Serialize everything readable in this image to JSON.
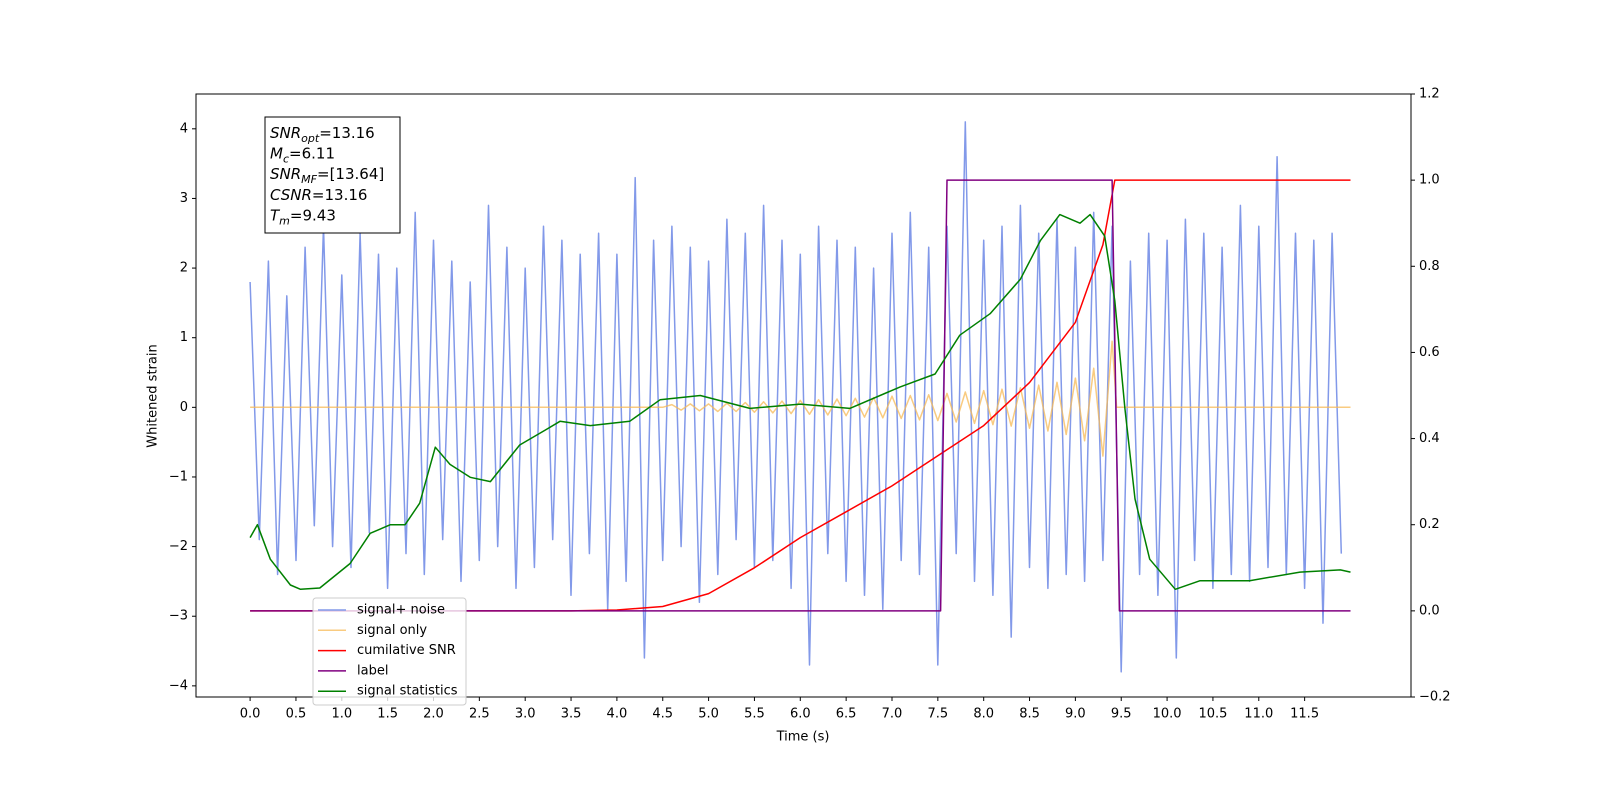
{
  "chart_data": {
    "type": "line",
    "xlabel": "Time (s)",
    "ylabel": "Whitened strain",
    "xlim": [
      -0.59,
      12.66
    ],
    "ylim": [
      -4.16,
      4.5
    ],
    "y2lim": [
      -0.2,
      1.2
    ],
    "xticks": [
      {
        "value": 0,
        "label": "0.0"
      },
      0.5,
      {
        "value": 1,
        "label": "1.0"
      },
      1.5,
      {
        "value": 2,
        "label": "2.0"
      },
      2.5,
      {
        "value": 3,
        "label": "3.0"
      },
      3.5,
      {
        "value": 4,
        "label": "4.0"
      },
      4.5,
      {
        "value": 5,
        "label": "5.0"
      },
      5.5,
      {
        "value": 6,
        "label": "6.0"
      },
      6.5,
      {
        "value": 7,
        "label": "7.0"
      },
      7.5,
      {
        "value": 8,
        "label": "8.0"
      },
      8.5,
      {
        "value": 9,
        "label": "9.0"
      },
      9.5,
      {
        "value": 10,
        "label": "10.0"
      },
      10.5,
      {
        "value": 11,
        "label": "11.0"
      },
      11.5
    ],
    "yticks": [
      {
        "value": -4,
        "label": "−4"
      },
      {
        "value": -3,
        "label": "−3"
      },
      {
        "value": -2,
        "label": "−2"
      },
      {
        "value": -1,
        "label": "−1"
      },
      0,
      1,
      2,
      3,
      4
    ],
    "y2ticks": [
      {
        "value": -0.2,
        "label": "−0.2"
      },
      {
        "value": 0,
        "label": "0.0"
      },
      0.2,
      0.4,
      0.6,
      0.8,
      {
        "value": 1,
        "label": "1.0"
      },
      1.2
    ],
    "legend": "lower left",
    "annotation": [
      {
        "symbol": "SNR",
        "subscript": "opt",
        "text": "=13.16"
      },
      {
        "symbol": "M",
        "subscript": "c",
        "text": "=6.11"
      },
      {
        "symbol": "SNR",
        "subscript": "MF",
        "text": "=[13.64]"
      },
      {
        "symbol": "CSNR",
        "text": "=13.16"
      },
      {
        "symbol": "T",
        "subscript": "m",
        "text": "=9.43"
      }
    ],
    "series": [
      {
        "name": "signal+ noise",
        "color": "#7b93e8",
        "axis": "y",
        "x": [
          0.0,
          0.1,
          0.2,
          0.3,
          0.4,
          0.5,
          0.6,
          0.7,
          0.8,
          0.9,
          1.0,
          1.1,
          1.2,
          1.3,
          1.4,
          1.5,
          1.6,
          1.7,
          1.8,
          1.9,
          2.0,
          2.1,
          2.2,
          2.3,
          2.4,
          2.5,
          2.6,
          2.7,
          2.8,
          2.9,
          3.0,
          3.1,
          3.2,
          3.3,
          3.4,
          3.5,
          3.6,
          3.7,
          3.8,
          3.9,
          4.0,
          4.1,
          4.2,
          4.3,
          4.4,
          4.5,
          4.6,
          4.7,
          4.8,
          4.9,
          5.0,
          5.1,
          5.2,
          5.3,
          5.4,
          5.5,
          5.6,
          5.7,
          5.8,
          5.9,
          6.0,
          6.1,
          6.2,
          6.3,
          6.4,
          6.5,
          6.6,
          6.7,
          6.8,
          6.9,
          7.0,
          7.1,
          7.2,
          7.3,
          7.4,
          7.5,
          7.6,
          7.7,
          7.8,
          7.9,
          8.0,
          8.1,
          8.2,
          8.3,
          8.4,
          8.5,
          8.6,
          8.7,
          8.8,
          8.9,
          9.0,
          9.1,
          9.2,
          9.3,
          9.4,
          9.5,
          9.6,
          9.7,
          9.8,
          9.9,
          10.0,
          10.1,
          10.2,
          10.3,
          10.4,
          10.5,
          10.6,
          10.7,
          10.8,
          10.9,
          11.0,
          11.1,
          11.2,
          11.3,
          11.4,
          11.5,
          11.6,
          11.7,
          11.8,
          11.9
        ],
        "values": [
          1.8,
          -1.9,
          2.1,
          -2.4,
          1.6,
          -2.2,
          2.3,
          -1.7,
          2.6,
          -2.0,
          1.9,
          -2.3,
          2.5,
          -1.8,
          2.2,
          -2.6,
          2.0,
          -2.1,
          2.8,
          -2.4,
          2.4,
          -1.9,
          2.1,
          -2.5,
          1.8,
          -2.2,
          2.9,
          -2.0,
          2.3,
          -2.6,
          2.0,
          -2.3,
          2.6,
          -1.9,
          2.4,
          -2.7,
          2.2,
          -2.1,
          2.5,
          -2.9,
          2.2,
          -2.5,
          3.3,
          -3.6,
          2.4,
          -2.2,
          2.6,
          -2.0,
          2.3,
          -2.8,
          2.1,
          -2.4,
          2.7,
          -1.9,
          2.5,
          -2.3,
          2.9,
          -2.2,
          2.4,
          -2.6,
          2.2,
          -3.7,
          2.6,
          -2.1,
          2.4,
          -2.5,
          2.3,
          -2.7,
          2.0,
          -2.9,
          2.5,
          -2.2,
          2.8,
          -2.4,
          2.3,
          -3.7,
          2.6,
          -2.1,
          4.1,
          -2.5,
          2.4,
          -2.7,
          2.6,
          -3.3,
          2.9,
          -2.3,
          2.5,
          -2.6,
          2.7,
          -2.4,
          2.3,
          -2.5,
          2.8,
          -2.2,
          2.6,
          -3.8,
          2.1,
          -2.4,
          2.5,
          -2.7,
          2.4,
          -3.6,
          2.7,
          -2.2,
          2.5,
          -2.6,
          2.3,
          -2.4,
          2.9,
          -2.5,
          2.6,
          -2.3,
          3.6,
          -2.4,
          2.5,
          -2.6,
          2.4,
          -3.1,
          2.5,
          -2.1
        ]
      },
      {
        "name": "signal only",
        "color": "#f7b955",
        "axis": "y",
        "x": [
          0.0,
          4.5,
          4.6,
          4.7,
          4.8,
          4.9,
          5.0,
          5.1,
          5.2,
          5.3,
          5.4,
          5.5,
          5.6,
          5.7,
          5.8,
          5.9,
          6.0,
          6.1,
          6.2,
          6.3,
          6.4,
          6.5,
          6.6,
          6.7,
          6.8,
          6.9,
          7.0,
          7.1,
          7.2,
          7.3,
          7.4,
          7.5,
          7.6,
          7.7,
          7.8,
          7.9,
          8.0,
          8.1,
          8.2,
          8.3,
          8.4,
          8.5,
          8.6,
          8.7,
          8.8,
          8.9,
          9.0,
          9.1,
          9.2,
          9.3,
          9.4,
          9.45,
          12.0
        ],
        "values": [
          0,
          0,
          0.04,
          -0.04,
          0.05,
          -0.05,
          0.05,
          -0.06,
          0.06,
          -0.06,
          0.07,
          -0.07,
          0.08,
          -0.08,
          0.09,
          -0.09,
          0.1,
          -0.1,
          0.11,
          -0.11,
          0.12,
          -0.12,
          0.13,
          -0.14,
          0.14,
          -0.15,
          0.16,
          -0.16,
          0.17,
          -0.18,
          0.18,
          -0.19,
          0.2,
          -0.21,
          0.22,
          -0.23,
          0.24,
          -0.25,
          0.26,
          -0.27,
          0.28,
          -0.3,
          0.32,
          -0.34,
          0.36,
          -0.39,
          0.42,
          -0.48,
          0.56,
          -0.7,
          0.95,
          0,
          0
        ]
      },
      {
        "name": "cumilative SNR",
        "color": "#ff0000",
        "axis": "y2",
        "x": [
          0,
          3.5,
          4.0,
          4.5,
          5.0,
          5.5,
          6.0,
          6.5,
          7.0,
          7.5,
          8.0,
          8.5,
          9.0,
          9.3,
          9.43,
          12.0
        ],
        "values": [
          0,
          0,
          0.002,
          0.01,
          0.04,
          0.1,
          0.17,
          0.23,
          0.29,
          0.36,
          0.43,
          0.53,
          0.67,
          0.85,
          1.0,
          1.0
        ]
      },
      {
        "name": "label",
        "color": "#800080",
        "axis": "y2",
        "x": [
          0,
          7.53,
          7.6,
          9.4,
          9.48,
          12.0
        ],
        "values": [
          0,
          0,
          1,
          1,
          0,
          0
        ]
      },
      {
        "name": "signal statistics",
        "color": "#008000",
        "axis": "y2",
        "x": [
          0,
          0.08,
          0.22,
          0.44,
          0.55,
          0.76,
          1.09,
          1.31,
          1.53,
          1.69,
          1.85,
          2.02,
          2.18,
          2.4,
          2.62,
          2.94,
          3.22,
          3.38,
          3.71,
          4.14,
          4.47,
          4.91,
          5.45,
          6.0,
          6.54,
          7.09,
          7.47,
          7.74,
          8.07,
          8.4,
          8.62,
          8.83,
          9.05,
          9.16,
          9.32,
          9.43,
          9.54,
          9.65,
          9.81,
          10.09,
          10.36,
          10.9,
          11.45,
          11.89,
          12.0
        ],
        "values": [
          0.17,
          0.2,
          0.12,
          0.06,
          0.05,
          0.053,
          0.11,
          0.18,
          0.2,
          0.2,
          0.25,
          0.38,
          0.34,
          0.31,
          0.3,
          0.385,
          0.42,
          0.44,
          0.43,
          0.44,
          0.49,
          0.5,
          0.47,
          0.48,
          0.47,
          0.52,
          0.55,
          0.64,
          0.69,
          0.77,
          0.86,
          0.92,
          0.9,
          0.92,
          0.87,
          0.72,
          0.47,
          0.26,
          0.12,
          0.05,
          0.07,
          0.07,
          0.09,
          0.095,
          0.09
        ]
      }
    ]
  }
}
